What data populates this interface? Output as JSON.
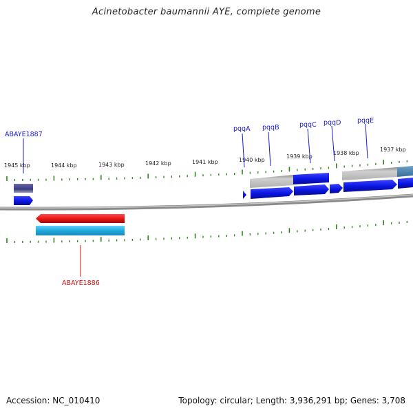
{
  "title": "Acinetobacter baumannii AYE, complete genome",
  "footer": {
    "accession": "Accession: NC_010410",
    "summary": "Topology: circular; Length: 3,936,291 bp; Genes: 3,708"
  },
  "colors": {
    "forward_gene": "#0a14e0",
    "reverse_gene": "#e81414",
    "gene_label_forward": "#1a1acc",
    "gene_label_reverse": "#d01010",
    "tick": "#2a8a1a",
    "backbone": "#8a8a8a",
    "cog_gray": "#bdbdbd",
    "cog_slate": "#4c4c8a",
    "cog_cyan": "#22aadd",
    "cog_steel": "#4a86b0"
  },
  "ticks": [
    {
      "label": "1945 kbp",
      "kbp": 1945
    },
    {
      "label": "1944 kbp",
      "kbp": 1944
    },
    {
      "label": "1943 kbp",
      "kbp": 1943
    },
    {
      "label": "1942 kbp",
      "kbp": 1942
    },
    {
      "label": "1941 kbp",
      "kbp": 1941
    },
    {
      "label": "1940 kbp",
      "kbp": 1940
    },
    {
      "label": "1939 kbp",
      "kbp": 1939
    },
    {
      "label": "1938 kbp",
      "kbp": 1938
    },
    {
      "label": "1937 kbp",
      "kbp": 1937
    }
  ],
  "gene_labels": [
    {
      "text": "ABAYE1887",
      "strand": "forward"
    },
    {
      "text": "pqqA",
      "strand": "forward"
    },
    {
      "text": "pqqB",
      "strand": "forward"
    },
    {
      "text": "pqqC",
      "strand": "forward"
    },
    {
      "text": "pqqD",
      "strand": "forward"
    },
    {
      "text": "pqqE",
      "strand": "forward"
    },
    {
      "text": "ABAYE1886",
      "strand": "reverse"
    }
  ]
}
